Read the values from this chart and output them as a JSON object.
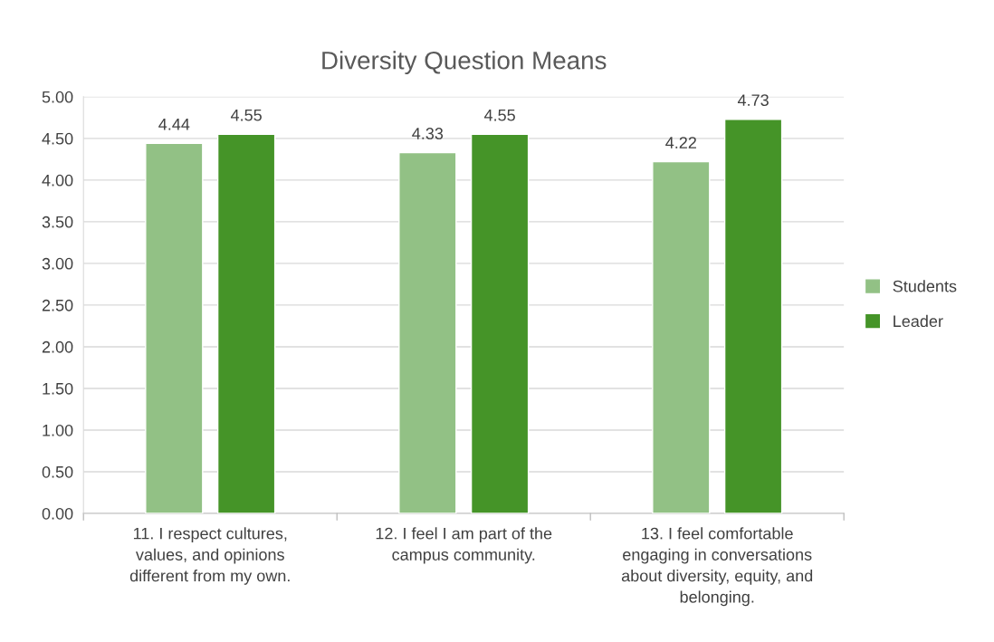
{
  "chart_data": {
    "type": "bar",
    "title": "Diversity Question Means",
    "categories": [
      "11. I respect cultures,\nvalues, and opinions\ndifferent from my own.",
      "12. I feel I am part of the\ncampus community.",
      "13. I feel comfortable\nengaging in conversations\nabout diversity, equity, and\nbelonging."
    ],
    "series": [
      {
        "name": "Students",
        "color": "#92c185",
        "values": [
          4.44,
          4.33,
          4.22
        ]
      },
      {
        "name": "Leader",
        "color": "#459428",
        "values": [
          4.55,
          4.55,
          4.73
        ]
      }
    ],
    "ylim": [
      0,
      5
    ],
    "yticks": [
      {
        "value": 0,
        "label": "0.00"
      },
      {
        "value": 0.5,
        "label": "0.50"
      },
      {
        "value": 1,
        "label": "1.00"
      },
      {
        "value": 1.5,
        "label": "1.50"
      },
      {
        "value": 2,
        "label": "2.00"
      },
      {
        "value": 2.5,
        "label": "2.50"
      },
      {
        "value": 3,
        "label": "3.00"
      },
      {
        "value": 3.5,
        "label": "3.50"
      },
      {
        "value": 4,
        "label": "4.00"
      },
      {
        "value": 4.5,
        "label": "4.50"
      },
      {
        "value": 5,
        "label": "5.00"
      }
    ],
    "grid": "y",
    "legend": "right",
    "data_labels": true
  }
}
